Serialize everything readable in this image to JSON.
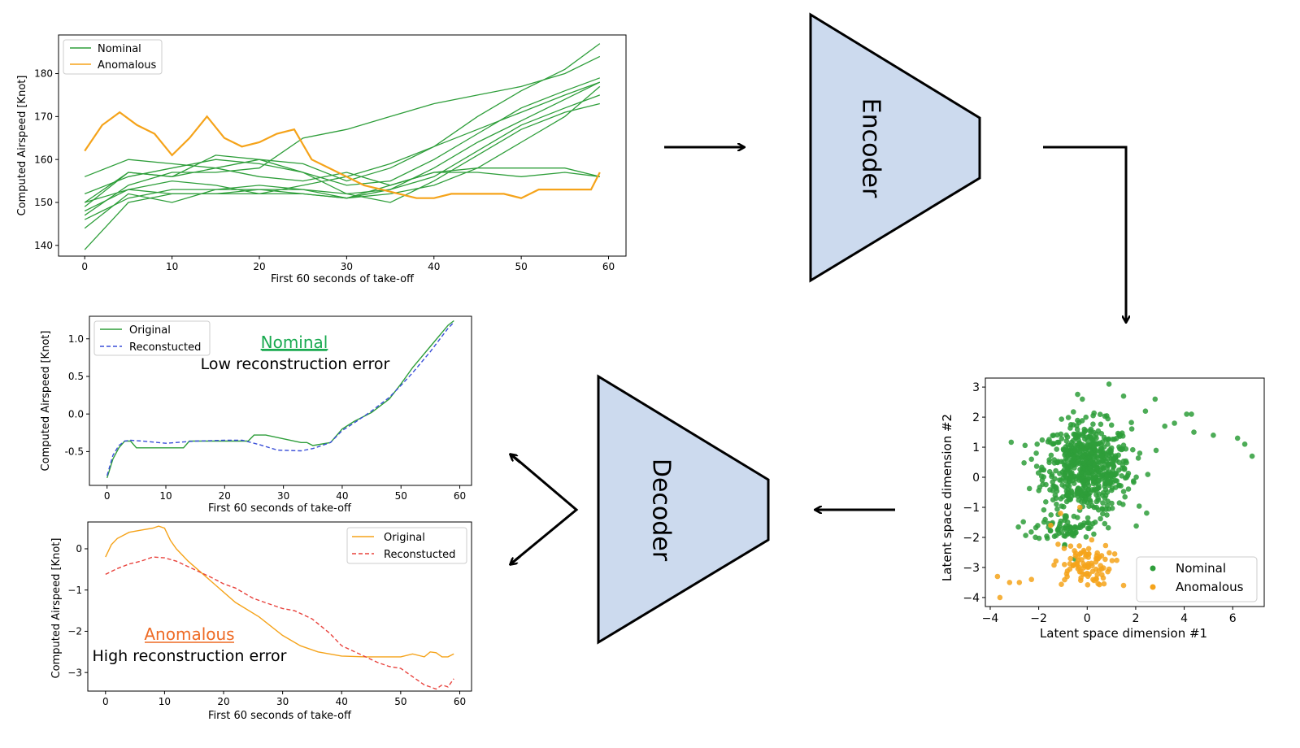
{
  "colors": {
    "nominal": "#2e9e3a",
    "anomalous": "#f5a31a",
    "reconstructed_nominal": "#3a4fd8",
    "reconstructed_anomalous": "#e8423c",
    "block_fill": "#ccdaee",
    "nominal_title": "#1aaa50",
    "anomalous_title": "#ee6a24"
  },
  "encoder": {
    "label": "Encoder"
  },
  "decoder": {
    "label": "Decoder"
  },
  "top_chart": {
    "type": "line",
    "xlabel": "First 60 seconds of take-off",
    "ylabel": "Computed Airspeed [Knot]",
    "xlim": [
      -3,
      62
    ],
    "ylim": [
      137.5,
      189
    ],
    "xticks": [
      0,
      10,
      20,
      30,
      40,
      50,
      60
    ],
    "yticks": [
      140,
      150,
      160,
      170,
      180
    ],
    "legend": {
      "position": "top-left",
      "items": [
        {
          "label": "Nominal",
          "color": "#2e9e3a"
        },
        {
          "label": "Anomalous",
          "color": "#f5a31a"
        }
      ]
    },
    "x": [
      0,
      5,
      10,
      15,
      20,
      25,
      30,
      35,
      40,
      45,
      50,
      55,
      59
    ],
    "nominal_series": [
      [
        149,
        157,
        156,
        161,
        160,
        159,
        155,
        158,
        163,
        170,
        176,
        181,
        187
      ],
      [
        147,
        154,
        157,
        157,
        158,
        165,
        167,
        170,
        173,
        175,
        177,
        180,
        184
      ],
      [
        152,
        156,
        158,
        160,
        159,
        157,
        154,
        155,
        160,
        166,
        172,
        176,
        179
      ],
      [
        150,
        153,
        155,
        154,
        152,
        154,
        156,
        159,
        163,
        167,
        171,
        175,
        178
      ],
      [
        146,
        151,
        153,
        153,
        153,
        152,
        151,
        153,
        158,
        164,
        169,
        174,
        178
      ],
      [
        139,
        150,
        152,
        152,
        153,
        153,
        152,
        153,
        156,
        162,
        168,
        172,
        175
      ],
      [
        156,
        160,
        159,
        158,
        160,
        157,
        152,
        150,
        155,
        161,
        167,
        171,
        173
      ],
      [
        144,
        152,
        150,
        153,
        154,
        153,
        151,
        152,
        154,
        158,
        164,
        170,
        177
      ],
      [
        148,
        153,
        152,
        152,
        152,
        152,
        151,
        154,
        157,
        157,
        156,
        157,
        156
      ],
      [
        150,
        157,
        156,
        158,
        156,
        155,
        157,
        154,
        157,
        158,
        158,
        158,
        156
      ]
    ],
    "anomalous_series": [
      {
        "x": [
          0,
          2,
          4,
          6,
          8,
          10,
          12,
          14,
          16,
          18,
          20,
          22,
          24,
          26,
          28,
          30,
          32,
          34,
          36,
          38,
          40,
          42,
          44,
          46,
          48,
          50,
          52,
          54,
          56,
          58,
          59
        ],
        "y": [
          162,
          168,
          171,
          168,
          166,
          161,
          165,
          170,
          165,
          163,
          164,
          166,
          167,
          160,
          158,
          156,
          154,
          153,
          152,
          151,
          151,
          152,
          152,
          152,
          152,
          151,
          153,
          153,
          153,
          153,
          157
        ]
      }
    ]
  },
  "latent_chart": {
    "type": "scatter",
    "xlabel": "Latent space dimension #1",
    "ylabel": "Latent space dimension #2",
    "xlim": [
      -4.2,
      7.3
    ],
    "ylim": [
      -4.3,
      3.3
    ],
    "xticks": [
      -4,
      -2,
      0,
      2,
      4,
      6
    ],
    "yticks": [
      -4,
      -3,
      -2,
      -1,
      0,
      1,
      2,
      3
    ],
    "legend": {
      "position": "bottom-right",
      "items": [
        {
          "label": "Nominal",
          "color": "#2e9e3a"
        },
        {
          "label": "Anomalous",
          "color": "#f5a31a"
        }
      ]
    },
    "series": [
      {
        "name": "Nominal",
        "clusters": [
          {
            "cx": 0.0,
            "cy": 0.3,
            "sx": 0.9,
            "sy": 0.75,
            "n": 650
          },
          {
            "cx": -0.8,
            "cy": -1.7,
            "sx": 0.7,
            "sy": 0.2,
            "n": 70
          }
        ],
        "extra": [
          [
            6.2,
            1.3
          ],
          [
            6.5,
            1.1
          ],
          [
            6.8,
            0.7
          ],
          [
            5.2,
            1.4
          ],
          [
            4.4,
            1.5
          ],
          [
            4.1,
            2.1
          ],
          [
            4.3,
            2.1
          ],
          [
            3.6,
            1.8
          ],
          [
            2.8,
            2.6
          ],
          [
            2.4,
            2.2
          ],
          [
            3.2,
            1.7
          ],
          [
            1.5,
            2.7
          ],
          [
            0.9,
            3.1
          ],
          [
            -0.2,
            2.6
          ],
          [
            -2.1,
            0.8
          ],
          [
            -2.3,
            0.6
          ]
        ]
      },
      {
        "name": "Anomalous",
        "clusters": [
          {
            "cx": -0.2,
            "cy": -2.9,
            "sx": 0.6,
            "sy": 0.35,
            "n": 90
          }
        ],
        "extra": [
          [
            -3.7,
            -3.3
          ],
          [
            -3.6,
            -4.0
          ],
          [
            -3.2,
            -3.5
          ],
          [
            -2.8,
            -3.5
          ],
          [
            -2.3,
            -3.4
          ],
          [
            -1.5,
            -1.6
          ],
          [
            -1.1,
            -1.2
          ],
          [
            1.5,
            -3.6
          ],
          [
            -0.3,
            -1.0
          ]
        ]
      }
    ]
  },
  "nominal_chart": {
    "type": "line",
    "annotation_title": "Nominal",
    "annotation_text": "Low reconstruction error",
    "xlabel": "First 60 seconds of take-off",
    "ylabel": "Computed Airspeed [Knot]",
    "xlim": [
      -3,
      62
    ],
    "ylim": [
      -0.95,
      1.3
    ],
    "xticks": [
      0,
      10,
      20,
      30,
      40,
      50,
      60
    ],
    "yticks": [
      -0.5,
      0.0,
      0.5,
      1.0
    ],
    "ytick_labels": [
      "-0.5",
      "0.0",
      "0.5",
      "1.0"
    ],
    "legend": {
      "position": "top-left",
      "items": [
        {
          "label": "Original",
          "color": "#2e9e3a",
          "dash": false
        },
        {
          "label": "Reconstucted",
          "color": "#3a4fd8",
          "dash": true
        }
      ]
    },
    "series": [
      {
        "name": "Original",
        "x": [
          0,
          1,
          2,
          3,
          4,
          5,
          8,
          10,
          13,
          14,
          20,
          24,
          25,
          27,
          33,
          34,
          35,
          38,
          40,
          42,
          45,
          48,
          50,
          52,
          55,
          58,
          59
        ],
        "y": [
          -0.85,
          -0.6,
          -0.45,
          -0.36,
          -0.36,
          -0.45,
          -0.45,
          -0.45,
          -0.45,
          -0.36,
          -0.36,
          -0.36,
          -0.28,
          -0.28,
          -0.38,
          -0.38,
          -0.42,
          -0.38,
          -0.2,
          -0.1,
          0.02,
          0.2,
          0.4,
          0.62,
          0.9,
          1.18,
          1.24
        ]
      },
      {
        "name": "Reconstucted",
        "x": [
          0,
          1,
          2,
          3,
          4,
          6,
          10,
          15,
          20,
          23,
          26,
          29,
          33,
          35,
          38,
          40,
          42,
          45,
          48,
          50,
          52,
          55,
          58,
          59
        ],
        "y": [
          -0.82,
          -0.55,
          -0.42,
          -0.36,
          -0.35,
          -0.36,
          -0.39,
          -0.36,
          -0.35,
          -0.35,
          -0.41,
          -0.48,
          -0.49,
          -0.46,
          -0.38,
          -0.22,
          -0.12,
          0.04,
          0.22,
          0.38,
          0.55,
          0.83,
          1.14,
          1.22
        ]
      }
    ]
  },
  "anomalous_chart": {
    "type": "line",
    "annotation_title": "Anomalous",
    "annotation_text": "High reconstruction error",
    "xlabel": "First 60 seconds of take-off",
    "ylabel": "Computed Airspeed [Knot]",
    "xlim": [
      -3,
      62
    ],
    "ylim": [
      -3.45,
      0.65
    ],
    "xticks": [
      0,
      10,
      20,
      30,
      40,
      50,
      60
    ],
    "yticks": [
      -3,
      -2,
      -1,
      0
    ],
    "ytick_labels": [
      "−3",
      "−2",
      "−1",
      "0"
    ],
    "legend": {
      "position": "top-right",
      "items": [
        {
          "label": "Original",
          "color": "#f5a31a",
          "dash": false
        },
        {
          "label": "Reconstucted",
          "color": "#e8423c",
          "dash": true
        }
      ]
    },
    "series": [
      {
        "name": "Original",
        "x": [
          0,
          1,
          2,
          4,
          6,
          8,
          9,
          10,
          11,
          12,
          14,
          18,
          22,
          26,
          30,
          33,
          36,
          40,
          44,
          48,
          50,
          52,
          54,
          55,
          56,
          57,
          58,
          59
        ],
        "y": [
          -0.2,
          0.1,
          0.25,
          0.4,
          0.45,
          0.5,
          0.55,
          0.5,
          0.2,
          0.0,
          -0.3,
          -0.8,
          -1.3,
          -1.65,
          -2.1,
          -2.35,
          -2.5,
          -2.6,
          -2.62,
          -2.62,
          -2.62,
          -2.55,
          -2.62,
          -2.5,
          -2.52,
          -2.62,
          -2.62,
          -2.55
        ]
      },
      {
        "name": "Reconstucted",
        "x": [
          0,
          2,
          4,
          6,
          8,
          10,
          12,
          15,
          18,
          20,
          22,
          25,
          28,
          30,
          32,
          35,
          38,
          40,
          43,
          46,
          48,
          50,
          52,
          54,
          55,
          56,
          57,
          58,
          59
        ],
        "y": [
          -0.62,
          -0.48,
          -0.37,
          -0.3,
          -0.2,
          -0.22,
          -0.3,
          -0.5,
          -0.7,
          -0.85,
          -0.95,
          -1.2,
          -1.35,
          -1.45,
          -1.5,
          -1.7,
          -2.05,
          -2.35,
          -2.55,
          -2.75,
          -2.85,
          -2.9,
          -3.1,
          -3.3,
          -3.35,
          -3.4,
          -3.3,
          -3.35,
          -3.15
        ]
      }
    ]
  }
}
